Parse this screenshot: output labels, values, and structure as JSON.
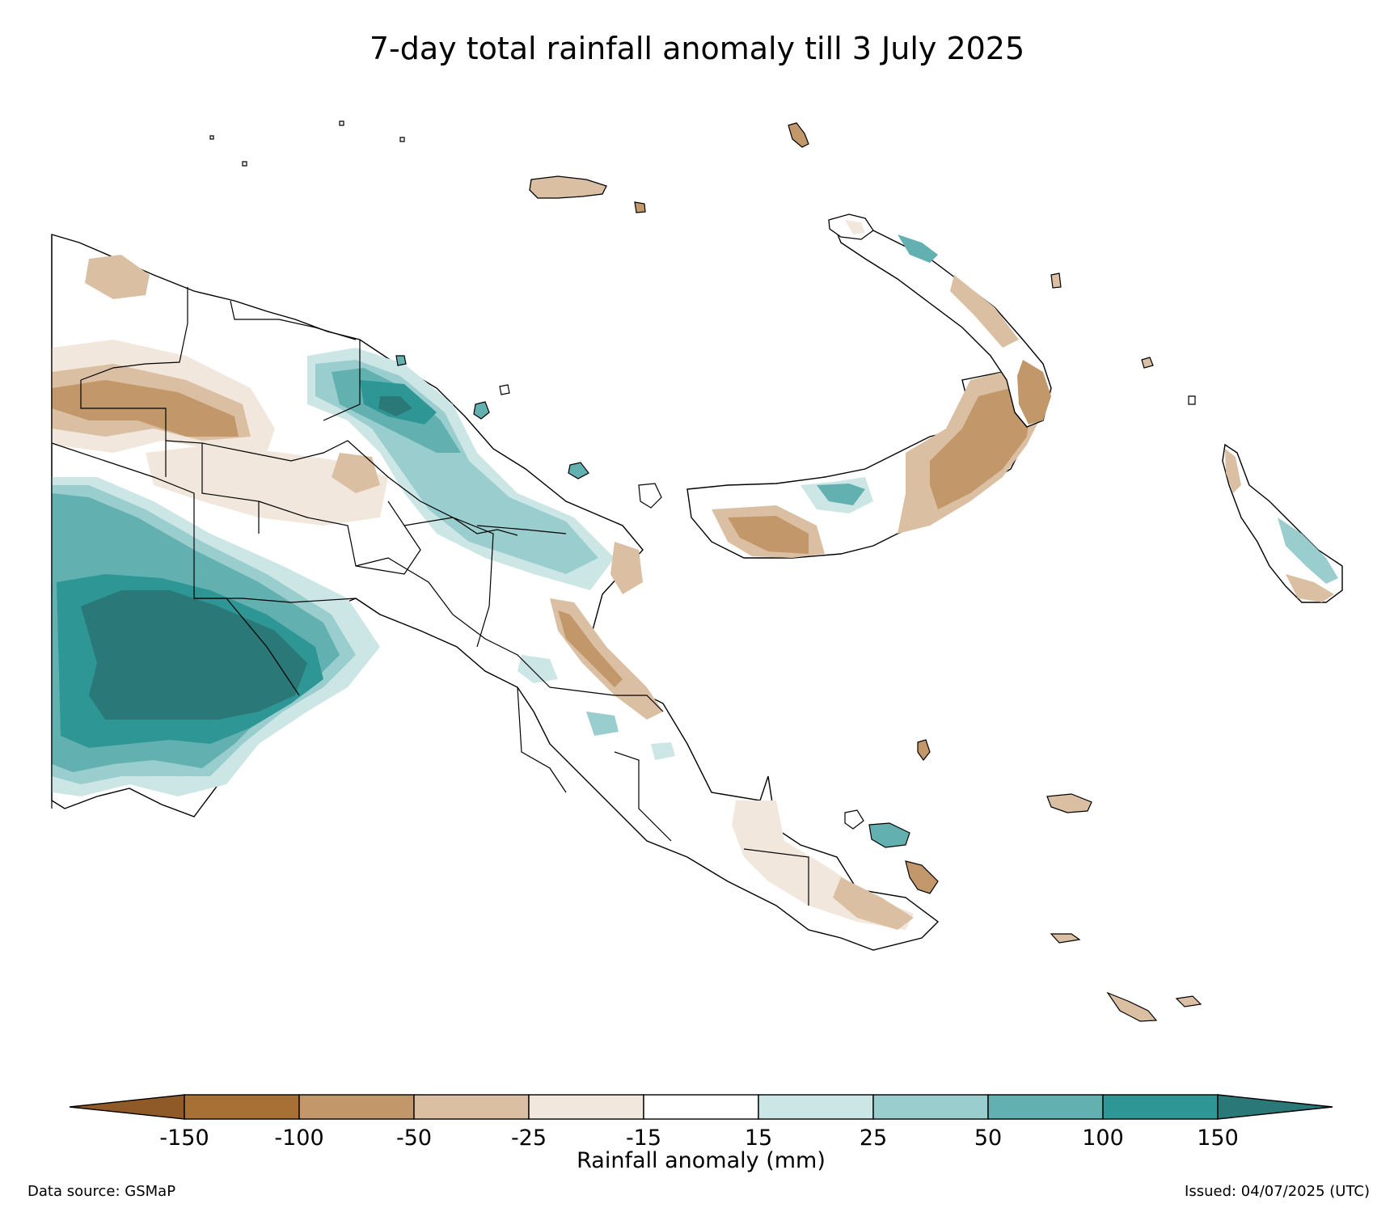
{
  "title": "7-day total rainfall anomaly till 3 July 2025",
  "colorbar": {
    "label": "Rainfall anomaly (mm)",
    "ticks": [
      "-150",
      "-100",
      "-50",
      "-25",
      "-15",
      "15",
      "25",
      "50",
      "100",
      "150"
    ],
    "colors": [
      "#8f5a28",
      "#a97035",
      "#c29769",
      "#dbbfa2",
      "#f2e7dd",
      "#ffffff",
      "#cce6e6",
      "#9acdcd",
      "#62b0b0",
      "#2f9696",
      "#2a7878"
    ],
    "extend": "both"
  },
  "data_source": "Data source: GSMaP",
  "issued": "Issued: 04/07/2025 (UTC)"
}
